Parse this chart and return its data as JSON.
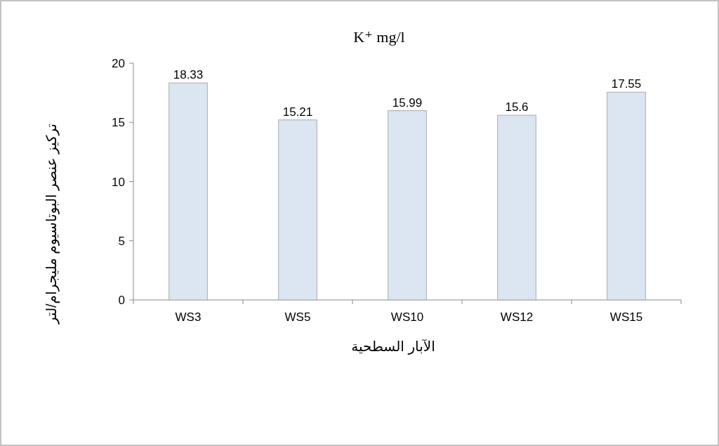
{
  "chart_data": {
    "type": "bar",
    "title": "K⁺  mg/l",
    "xlabel": "الآبار السطحية",
    "ylabel": "تركيز عنصر البوتاسيوم مليجرام/لتر",
    "categories": [
      "WS3",
      "WS5",
      "WS10",
      "WS12",
      "WS15"
    ],
    "values": [
      18.33,
      15.21,
      15.99,
      15.6,
      17.55
    ],
    "color": "#dce6f2",
    "ylim": [
      0,
      20
    ],
    "yticks": [
      0,
      5,
      10,
      15,
      20
    ],
    "data_labels": true,
    "grid": false
  }
}
